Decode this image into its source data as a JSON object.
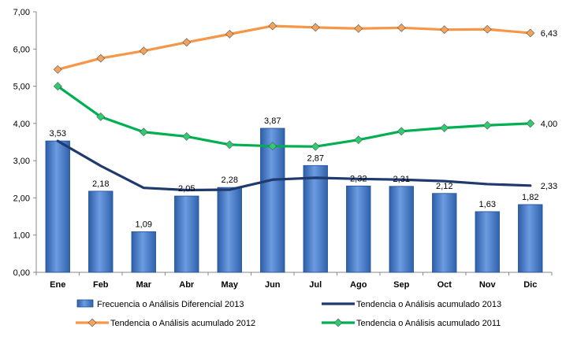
{
  "chart_data": {
    "type": "bar",
    "title": "",
    "xlabel": "",
    "ylabel": "",
    "ylim": [
      0,
      7
    ],
    "yticks": [
      "0,00",
      "1,00",
      "2,00",
      "3,00",
      "4,00",
      "5,00",
      "6,00",
      "7,00"
    ],
    "grid": false,
    "legend_position": "bottom",
    "categories": [
      "Ene",
      "Feb",
      "Mar",
      "Abr",
      "May",
      "Jun",
      "Jul",
      "Ago",
      "Sep",
      "Oct",
      "Nov",
      "Dic"
    ],
    "series": [
      {
        "name": "Frecuencia o Análisis Diferencial 2013",
        "kind": "bar",
        "color": "#4a7fd0",
        "values": [
          3.53,
          2.18,
          1.09,
          2.05,
          2.28,
          3.87,
          2.87,
          2.32,
          2.31,
          2.12,
          1.63,
          1.82
        ],
        "labels": [
          "3,53",
          "2,18",
          "1,09",
          "2,05",
          "2,28",
          "3,87",
          "2,87",
          "2,32",
          "2,31",
          "2,12",
          "1,63",
          "1,82"
        ]
      },
      {
        "name": "Tendencia o Análisis acumulado 2013",
        "kind": "line",
        "color": "#1f3a6e",
        "marker": "none",
        "values": [
          3.53,
          2.86,
          2.27,
          2.21,
          2.22,
          2.49,
          2.54,
          2.51,
          2.49,
          2.45,
          2.37,
          2.33
        ],
        "end_label": "2,33"
      },
      {
        "name": "Tendencia o Análisis acumulado 2012",
        "kind": "line",
        "color": "#f79646",
        "marker_color": "#f5a35a",
        "marker": "diamond",
        "values": [
          5.45,
          5.75,
          5.95,
          6.18,
          6.4,
          6.62,
          6.58,
          6.55,
          6.57,
          6.52,
          6.53,
          6.43
        ],
        "end_label": "6,43"
      },
      {
        "name": "Tendencia o Análisis acumulado 2011",
        "kind": "line",
        "color": "#00b050",
        "marker_color": "#2ecc71",
        "marker": "diamond",
        "values": [
          5.0,
          4.18,
          3.77,
          3.65,
          3.43,
          3.39,
          3.38,
          3.56,
          3.79,
          3.88,
          3.95,
          4.0
        ],
        "end_label": "4,00"
      }
    ]
  }
}
